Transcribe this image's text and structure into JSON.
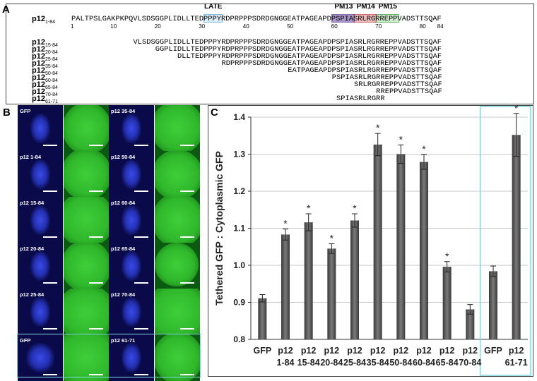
{
  "panel_a": {
    "label": "A",
    "rows": [
      {
        "name": "p12",
        "sub": "1-84",
        "seq": "PALTPSLGAKPKPQVLSDSGGPLIDLLTEDPPPYRDPRPPPSDRDGNGGEATPAGEAPDPSPIASRLRGRREPPVADSTTSQAF",
        "start": 1
      },
      {
        "name": "p12",
        "sub": "15-84",
        "seq": "VLSDSGGPLIDLLTEDPPPYRDPRPPPSDRDGNGGEATPAGEAPDPSPIASRLRGRREPPVADSTTSQAF",
        "start": 15
      },
      {
        "name": "p12",
        "sub": "20-84",
        "seq": "GGPLIDLLTEDPPPYRDPRPPPSDRDGNGGEATPAGEAPDPSPIASRLRGRREPPVADSTTSQAF",
        "start": 20
      },
      {
        "name": "p12",
        "sub": "25-84",
        "seq": "DLLTEDPPPYRDPRPPPSDRDGNGGEATPAGEAPDPSPIASRLRGRREPPVADSTTSQAF",
        "start": 25
      },
      {
        "name": "p12",
        "sub": "35-84",
        "seq": "RDPRPPPSDRDGNGGEATPAGEAPDPSPIASRLRGRREPPVADSTTSQAF",
        "start": 35
      },
      {
        "name": "p12",
        "sub": "50-84",
        "seq": "EATPAGEAPDPSPIASRLRGRREPPVADSTTSQAF",
        "start": 50
      },
      {
        "name": "p12",
        "sub": "60-84",
        "seq": "PSPIASRLRGRREPPVADSTTSQAF",
        "start": 60
      },
      {
        "name": "p12",
        "sub": "65-84",
        "seq": "SRLRGRREPPVADSTTSQAF",
        "start": 65
      },
      {
        "name": "p12",
        "sub": "70-84",
        "seq": "RREPPVADSTTSQAF",
        "start": 70
      },
      {
        "name": "p12",
        "sub": "61-71",
        "seq": "SPIASRLRGRR",
        "start": 61
      }
    ],
    "ticks": [
      "1",
      "10",
      "20",
      "30",
      "40",
      "50",
      "60",
      "70",
      "80",
      "84"
    ],
    "motifs": [
      {
        "name": "LATE",
        "start": 31,
        "end": 34,
        "color": "#5aa8d8",
        "fill": "#cfe6f4"
      },
      {
        "name": "PM13",
        "start": 60,
        "end": 64,
        "color": "#5b3f8f",
        "fill": "#8a72b8"
      },
      {
        "name": "PM14",
        "start": 65,
        "end": 69,
        "color": "#c23a3a",
        "fill": "#e4a5a5"
      },
      {
        "name": "PM15",
        "start": 70,
        "end": 74,
        "color": "#3a9a3a",
        "fill": "#bfe3bf"
      }
    ]
  },
  "panel_b": {
    "label": "B",
    "cells": [
      "GFP",
      "p12 35-84",
      "p12 1-84",
      "p12 50-84",
      "p12 15-84",
      "p12 60-84",
      "p12 20-84",
      "p12 65-84",
      "p12 25-84",
      "p12 70-84",
      "GFP",
      "p12 61-71"
    ]
  },
  "panel_c": {
    "label": "C",
    "highlight_color": "#7fd7e0",
    "bar_color": "#555555"
  },
  "chart_data": {
    "type": "bar",
    "ylabel": "Tethered GFP : Cytoplasmic GFP",
    "ylim": [
      0.8,
      1.4
    ],
    "yticks": [
      "0.8",
      "0.9",
      "1.0",
      "1.1",
      "1.2",
      "1.3",
      "1.4"
    ],
    "categories": [
      {
        "l1": "GFP",
        "l2": ""
      },
      {
        "l1": "p12",
        "l2": "1-84"
      },
      {
        "l1": "p12",
        "l2": "15-84"
      },
      {
        "l1": "p12",
        "l2": "20-84"
      },
      {
        "l1": "p12",
        "l2": "25-84"
      },
      {
        "l1": "p12",
        "l2": "35-84"
      },
      {
        "l1": "p12",
        "l2": "50-84"
      },
      {
        "l1": "p12",
        "l2": "60-84"
      },
      {
        "l1": "p12",
        "l2": "65-84"
      },
      {
        "l1": "p12",
        "l2": "70-84"
      },
      {
        "l1": "GFP",
        "l2": ""
      },
      {
        "l1": "p12",
        "l2": "61-71"
      }
    ],
    "values": [
      0.911,
      1.083,
      1.116,
      1.045,
      1.121,
      1.326,
      1.3,
      1.279,
      0.996,
      0.881,
      0.984,
      1.352
    ],
    "errors": [
      0.01,
      0.015,
      0.023,
      0.013,
      0.018,
      0.03,
      0.025,
      0.02,
      0.014,
      0.013,
      0.014,
      0.058
    ],
    "significant": [
      false,
      true,
      true,
      true,
      true,
      true,
      true,
      true,
      true,
      false,
      false,
      true
    ],
    "sig_marker": "*",
    "grid": true,
    "legend": "none"
  }
}
